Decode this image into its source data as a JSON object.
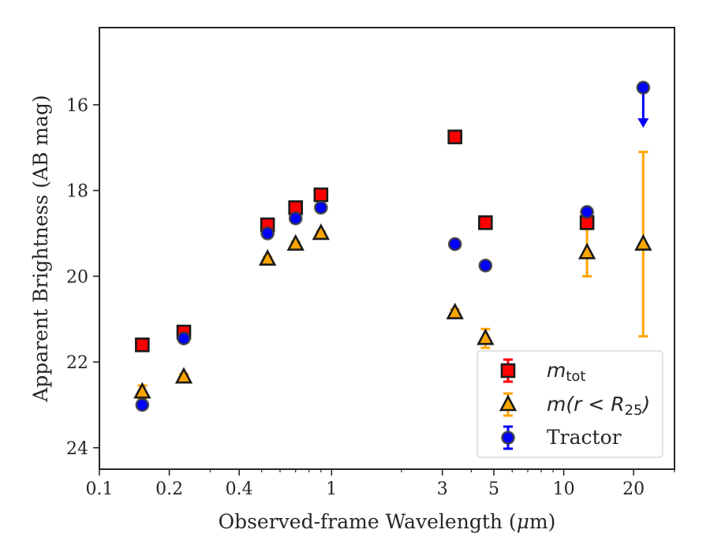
{
  "chart_data": {
    "type": "scatter",
    "xlabel_text": "Observed-frame Wavelength (",
    "xlabel_mu": "μ",
    "xlabel_unit": "m)",
    "ylabel": "Apparent Brightness (AB mag)",
    "x_scale": "log",
    "xlim": [
      0.1,
      30
    ],
    "ylim": [
      24.5,
      14.2
    ],
    "y_inverted": true,
    "x_major_ticks": [
      0.1,
      0.2,
      0.4,
      1,
      3,
      5,
      10,
      20
    ],
    "x_major_tick_labels": [
      "0.1",
      "0.2",
      "0.4",
      "1",
      "3",
      "5",
      "10",
      "20"
    ],
    "x_minor_ticks": [
      0.3,
      0.5,
      0.6,
      0.7,
      0.8,
      0.9,
      2,
      4,
      6,
      7,
      8,
      9,
      30
    ],
    "y_ticks": [
      16,
      18,
      20,
      22,
      24
    ],
    "y_tick_labels": [
      "16",
      "18",
      "20",
      "22",
      "24"
    ],
    "grid": false,
    "legend_position": "lower-right",
    "series": [
      {
        "key": "mtot",
        "marker": "square",
        "color": "#ff0000",
        "errcolor": "#ff0000",
        "x": [
          0.153,
          0.231,
          0.53,
          0.7,
          0.9,
          3.4,
          4.6,
          12.6
        ],
        "y": [
          21.6,
          21.3,
          18.8,
          18.4,
          18.1,
          16.75,
          18.75,
          18.75
        ],
        "yerr": [
          0.05,
          0.05,
          0.04,
          0.04,
          0.04,
          0.04,
          0.05,
          0.1
        ]
      },
      {
        "key": "mr25",
        "marker": "triangle",
        "color": "#ffa500",
        "errcolor": "#ffa500",
        "x": [
          0.153,
          0.231,
          0.53,
          0.7,
          0.9,
          3.4,
          4.6,
          12.6,
          22.0
        ],
        "y": [
          22.7,
          22.35,
          19.6,
          19.25,
          19.0,
          20.85,
          21.45,
          19.45,
          19.25
        ],
        "yerr": [
          0.15,
          0.07,
          0.05,
          0.05,
          0.05,
          0.08,
          0.22,
          0.55,
          2.15
        ]
      },
      {
        "key": "tractor",
        "marker": "circle",
        "color": "#0000ff",
        "errcolor": "#0000ff",
        "x": [
          0.153,
          0.231,
          0.53,
          0.7,
          0.9,
          3.4,
          4.6,
          12.6,
          22.0
        ],
        "y": [
          23.0,
          21.45,
          19.0,
          18.65,
          18.4,
          19.25,
          19.75,
          18.5,
          15.6
        ],
        "yerr": [
          0.05,
          0.05,
          0.03,
          0.03,
          0.03,
          0.03,
          0.04,
          0.06,
          0.0
        ],
        "upper_limit_index": 8,
        "upper_limit_to": 16.5
      }
    ],
    "legend": [
      {
        "key": "mtot",
        "label_base": "m",
        "label_sub": "tot"
      },
      {
        "key": "mr25",
        "label_pre": "m",
        "label_mid": "(r < R",
        "label_sub": "25",
        "label_post": ")"
      },
      {
        "key": "tractor",
        "label": "Tractor"
      }
    ]
  }
}
